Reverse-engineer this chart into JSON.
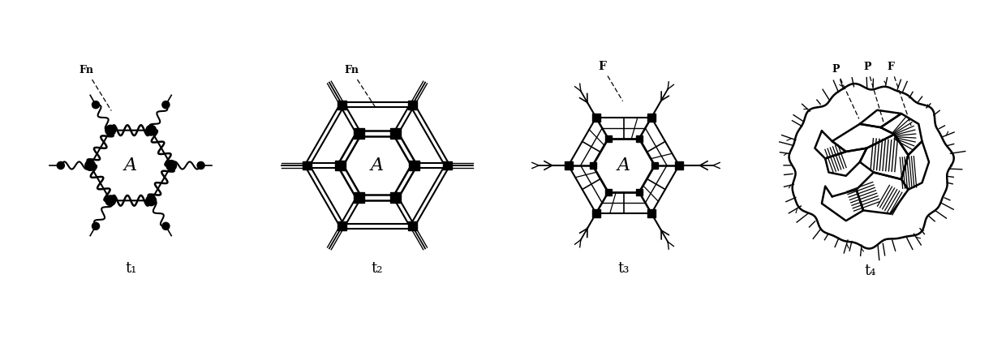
{
  "bg_color": "#ffffff",
  "line_color": "#000000",
  "fig_width": 12.4,
  "fig_height": 4.34,
  "labels": {
    "t1": "t₁",
    "t2": "t₂",
    "t3": "t₃",
    "t4": "t₄",
    "Fn1": "Fn",
    "Fn2": "Fn",
    "F3": "F",
    "P4a": "P",
    "P4b": "P",
    "F4": "F",
    "A": "A"
  }
}
